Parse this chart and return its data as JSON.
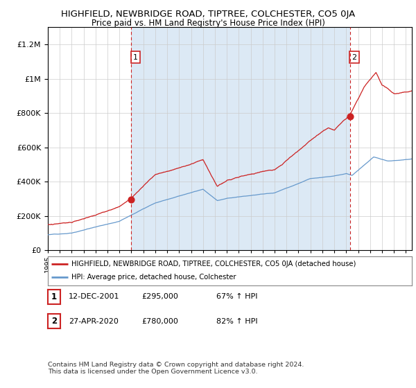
{
  "title": "HIGHFIELD, NEWBRIDGE ROAD, TIPTREE, COLCHESTER, CO5 0JA",
  "subtitle": "Price paid vs. HM Land Registry's House Price Index (HPI)",
  "title_fontsize": 9.5,
  "subtitle_fontsize": 8.5,
  "background_color": "#ffffff",
  "plot_bg_color": "#ffffff",
  "grid_color": "#cccccc",
  "shade_color": "#dce9f5",
  "sale1_date": 2002.0,
  "sale1_price": 295000,
  "sale2_date": 2020.33,
  "sale2_price": 780000,
  "red_line_color": "#cc2222",
  "blue_line_color": "#6699cc",
  "dashed_line_color": "#cc2222",
  "ylim_min": 0,
  "ylim_max": 1300000,
  "xlim_min": 1995,
  "xlim_max": 2025.5,
  "legend_label_red": "HIGHFIELD, NEWBRIDGE ROAD, TIPTREE, COLCHESTER, CO5 0JA (detached house)",
  "legend_label_blue": "HPI: Average price, detached house, Colchester",
  "footer1": "Contains HM Land Registry data © Crown copyright and database right 2024.",
  "footer2": "This data is licensed under the Open Government Licence v3.0.",
  "table_row1_num": "1",
  "table_row1_date": "12-DEC-2001",
  "table_row1_price": "£295,000",
  "table_row1_hpi": "67% ↑ HPI",
  "table_row2_num": "2",
  "table_row2_date": "27-APR-2020",
  "table_row2_price": "£780,000",
  "table_row2_hpi": "82% ↑ HPI"
}
